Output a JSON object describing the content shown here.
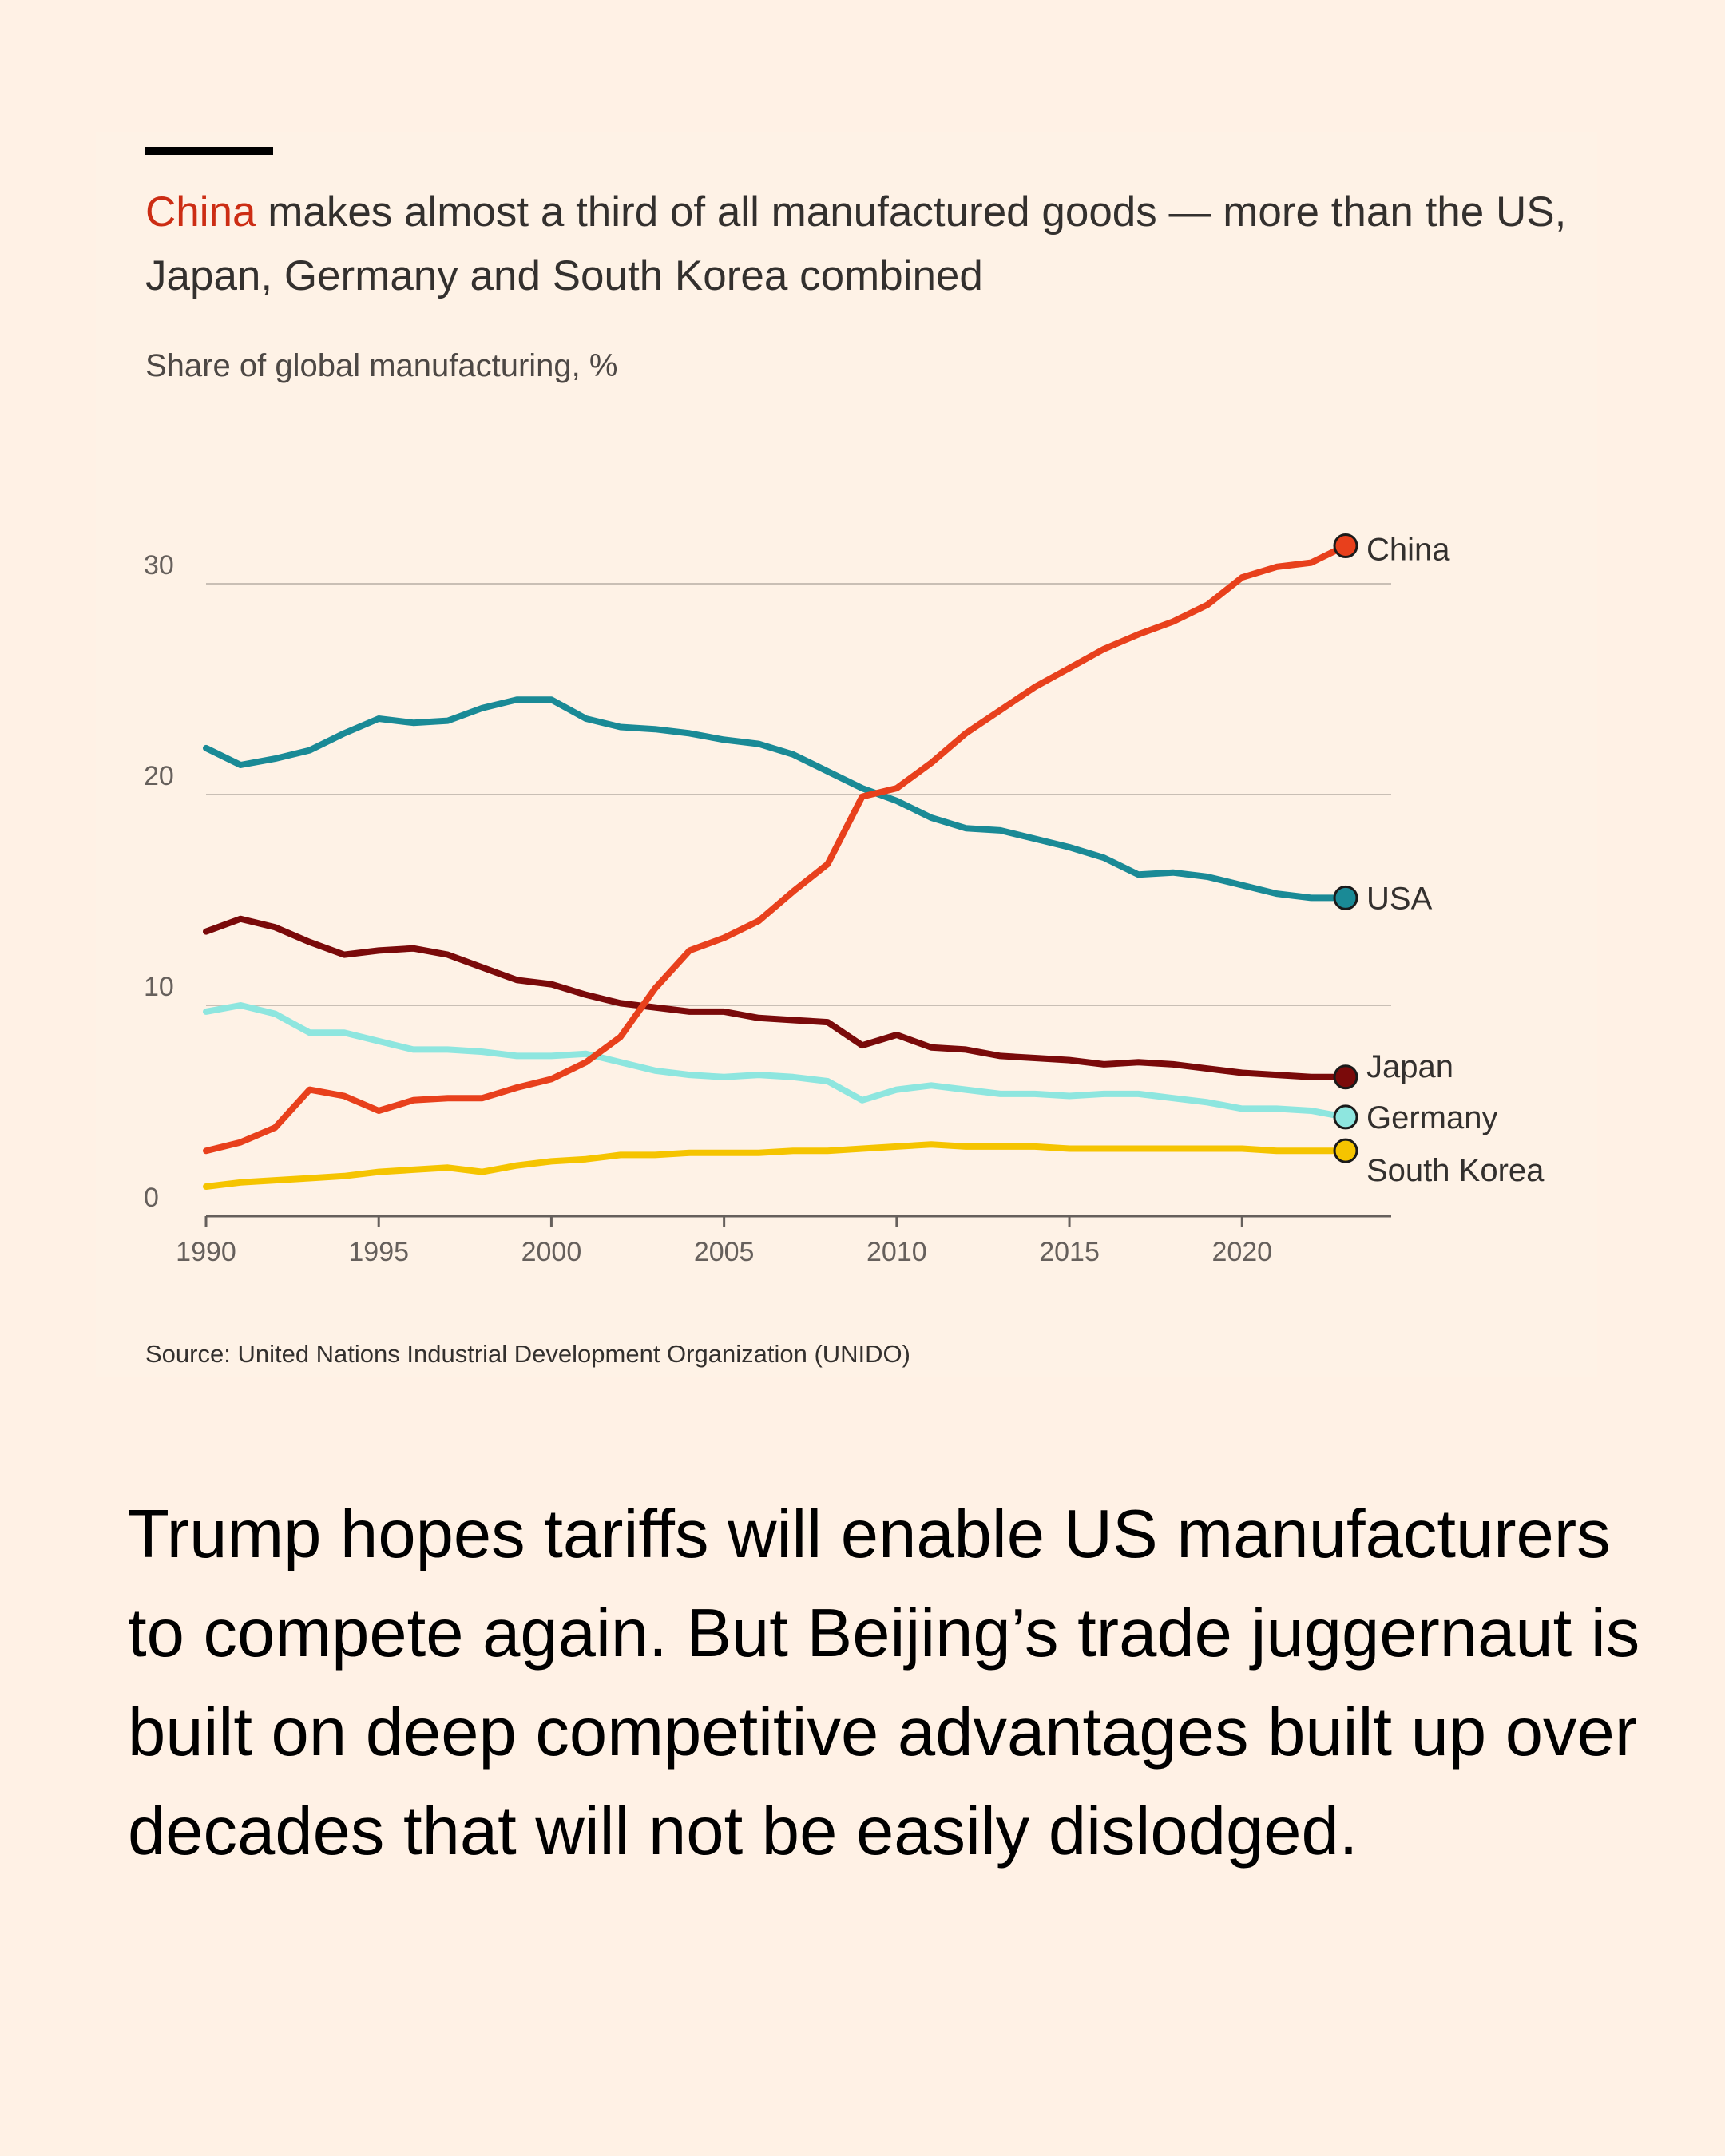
{
  "headline": {
    "highlight": "China",
    "rest": " makes almost a third of all manufactured goods — more than the US, Japan, Germany and South Korea combined"
  },
  "subtitle": "Share of global manufacturing, %",
  "source": "Source: United Nations Industrial Development Organization (UNIDO)",
  "body_text": "Trump hopes tariffs will enable US manufacturers to compete again. But Beijing’s trade juggernaut is built on deep competitive advantages built up over decades that will not be easily dislodged.",
  "colors": {
    "background": "#fff1e5",
    "highlight": "#cc2d14",
    "China": "#e8401c",
    "USA": "#1a8a96",
    "Japan": "#7a0a0a",
    "Germany": "#8ee6df",
    "South Korea": "#f5c400"
  },
  "chart_data": {
    "type": "line",
    "title": "Share of global manufacturing, %",
    "xlabel": "",
    "ylabel": "Share of global manufacturing, %",
    "xlim": [
      1990,
      2023
    ],
    "ylim": [
      0,
      33
    ],
    "x_ticks": [
      1990,
      1995,
      2000,
      2005,
      2010,
      2015,
      2020
    ],
    "y_ticks": [
      0,
      10,
      20,
      30
    ],
    "grid": true,
    "x": [
      1990,
      1991,
      1992,
      1993,
      1994,
      1995,
      1996,
      1997,
      1998,
      1999,
      2000,
      2001,
      2002,
      2003,
      2004,
      2005,
      2006,
      2007,
      2008,
      2009,
      2010,
      2011,
      2012,
      2013,
      2014,
      2015,
      2016,
      2017,
      2018,
      2019,
      2020,
      2021,
      2022,
      2023
    ],
    "series": [
      {
        "name": "China",
        "values": [
          3.1,
          3.5,
          4.2,
          6.0,
          5.7,
          5.0,
          5.5,
          5.6,
          5.6,
          6.1,
          6.5,
          7.3,
          8.5,
          10.8,
          12.6,
          13.2,
          14.0,
          15.4,
          16.7,
          19.9,
          20.3,
          21.5,
          22.9,
          24.0,
          25.1,
          26.0,
          26.9,
          27.6,
          28.2,
          29.0,
          30.3,
          30.8,
          31.0,
          31.8
        ]
      },
      {
        "name": "USA",
        "values": [
          22.2,
          21.4,
          21.7,
          22.1,
          22.9,
          23.6,
          23.4,
          23.5,
          24.1,
          24.5,
          24.5,
          23.6,
          23.2,
          23.1,
          22.9,
          22.6,
          22.4,
          21.9,
          21.1,
          20.3,
          19.7,
          18.9,
          18.4,
          18.3,
          17.9,
          17.5,
          17.0,
          16.2,
          16.3,
          16.1,
          15.7,
          15.3,
          15.1,
          15.1
        ]
      },
      {
        "name": "Japan",
        "values": [
          13.5,
          14.1,
          13.7,
          13.0,
          12.4,
          12.6,
          12.7,
          12.4,
          11.8,
          11.2,
          11.0,
          10.5,
          10.1,
          9.9,
          9.7,
          9.7,
          9.4,
          9.3,
          9.2,
          8.1,
          8.6,
          8.0,
          7.9,
          7.6,
          7.5,
          7.4,
          7.2,
          7.3,
          7.2,
          7.0,
          6.8,
          6.7,
          6.6,
          6.6
        ]
      },
      {
        "name": "Germany",
        "values": [
          9.7,
          10.0,
          9.6,
          8.7,
          8.7,
          8.3,
          7.9,
          7.9,
          7.8,
          7.6,
          7.6,
          7.7,
          7.3,
          6.9,
          6.7,
          6.6,
          6.7,
          6.6,
          6.4,
          5.5,
          6.0,
          6.2,
          6.0,
          5.8,
          5.8,
          5.7,
          5.8,
          5.8,
          5.6,
          5.4,
          5.1,
          5.1,
          5.0,
          4.7
        ]
      },
      {
        "name": "South Korea",
        "values": [
          1.4,
          1.6,
          1.7,
          1.8,
          1.9,
          2.1,
          2.2,
          2.3,
          2.1,
          2.4,
          2.6,
          2.7,
          2.9,
          2.9,
          3.0,
          3.0,
          3.0,
          3.1,
          3.1,
          3.2,
          3.3,
          3.4,
          3.3,
          3.3,
          3.3,
          3.2,
          3.2,
          3.2,
          3.2,
          3.2,
          3.2,
          3.1,
          3.1,
          3.1
        ]
      }
    ],
    "end_labels": [
      "China",
      "USA",
      "Japan",
      "Germany",
      "South Korea"
    ]
  }
}
